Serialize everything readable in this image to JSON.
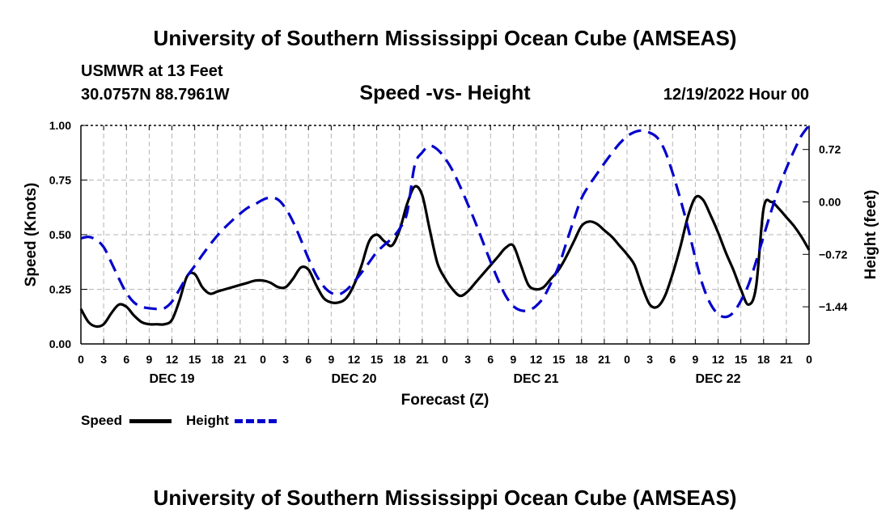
{
  "header": {
    "title": "University of Southern Mississippi Ocean Cube (AMSEAS)",
    "station": "USMWR at 13 Feet",
    "coords": "30.0757N  88.7961W",
    "subtitle": "Speed -vs- Height",
    "date": "12/19/2022 Hour 00"
  },
  "footer": {
    "title": "University of Southern Mississippi Ocean Cube (AMSEAS)"
  },
  "legend": {
    "speed": {
      "label": "Speed",
      "color": "#000000"
    },
    "height": {
      "label": "Height",
      "color": "#0000cc"
    }
  },
  "chart_data": {
    "type": "line",
    "title": "Speed -vs- Height",
    "xlabel": "Forecast (Z)",
    "ylabel": "Speed (Knots)",
    "y2label": "Height (feet)",
    "xlim": [
      0,
      96
    ],
    "ylim": [
      0,
      1.0
    ],
    "y2lim": [
      -1.95,
      1.05
    ],
    "grid": true,
    "xticks": [
      0,
      3,
      6,
      9,
      12,
      15,
      18,
      21,
      24,
      27,
      30,
      33,
      36,
      39,
      42,
      45,
      48,
      51,
      54,
      57,
      60,
      63,
      66,
      69,
      72,
      75,
      78,
      81,
      84,
      87,
      90,
      93,
      96
    ],
    "xtick_labels": [
      "0",
      "3",
      "6",
      "9",
      "12",
      "15",
      "18",
      "21",
      "0",
      "3",
      "6",
      "9",
      "12",
      "15",
      "18",
      "21",
      "0",
      "3",
      "6",
      "9",
      "12",
      "15",
      "18",
      "21",
      "0",
      "3",
      "6",
      "9",
      "12",
      "15",
      "18",
      "21",
      "0"
    ],
    "day_labels": [
      {
        "hour": 12,
        "label": "DEC 19"
      },
      {
        "hour": 36,
        "label": "DEC 20"
      },
      {
        "hour": 60,
        "label": "DEC 21"
      },
      {
        "hour": 84,
        "label": "DEC 22"
      }
    ],
    "yticks": [
      0.0,
      0.25,
      0.5,
      0.75,
      1.0
    ],
    "ytick_labels": [
      "0.00",
      "0.25",
      "0.50",
      "0.75",
      "1.00"
    ],
    "y2ticks": [
      0.72,
      0.0,
      -0.72,
      -1.44
    ],
    "y2tick_labels": [
      "0.72",
      "0.00",
      "−0.72",
      "−1.44"
    ],
    "series": [
      {
        "name": "Speed",
        "axis": "left",
        "style": "solid",
        "x": [
          0,
          1,
          2,
          3,
          4,
          5,
          6,
          7,
          8,
          9,
          10,
          11,
          12,
          13,
          14,
          15,
          16,
          17,
          18,
          19,
          20,
          21,
          22,
          23,
          24,
          25,
          26,
          27,
          28,
          29,
          30,
          31,
          32,
          33,
          34,
          35,
          36,
          37,
          38,
          39,
          40,
          41,
          42,
          43,
          44,
          45,
          46,
          47,
          48,
          49,
          50,
          51,
          52,
          53,
          54,
          55,
          56,
          57,
          58,
          59,
          60,
          61,
          62,
          63,
          64,
          65,
          66,
          67,
          68,
          69,
          70,
          71,
          72,
          73,
          74,
          75,
          76,
          77,
          78,
          79,
          80,
          81,
          82,
          83,
          84,
          85,
          86,
          87,
          88,
          89,
          90,
          91,
          92,
          93,
          94,
          95,
          96
        ],
        "values": [
          0.16,
          0.1,
          0.08,
          0.09,
          0.14,
          0.18,
          0.17,
          0.13,
          0.1,
          0.09,
          0.09,
          0.09,
          0.11,
          0.2,
          0.31,
          0.32,
          0.26,
          0.23,
          0.24,
          0.25,
          0.26,
          0.27,
          0.28,
          0.29,
          0.29,
          0.28,
          0.26,
          0.26,
          0.3,
          0.35,
          0.34,
          0.27,
          0.21,
          0.19,
          0.19,
          0.21,
          0.27,
          0.36,
          0.47,
          0.5,
          0.47,
          0.45,
          0.52,
          0.64,
          0.72,
          0.68,
          0.52,
          0.37,
          0.3,
          0.25,
          0.22,
          0.24,
          0.28,
          0.32,
          0.36,
          0.4,
          0.44,
          0.45,
          0.36,
          0.27,
          0.25,
          0.26,
          0.3,
          0.34,
          0.4,
          0.47,
          0.54,
          0.56,
          0.55,
          0.52,
          0.49,
          0.45,
          0.41,
          0.36,
          0.26,
          0.18,
          0.17,
          0.22,
          0.32,
          0.44,
          0.58,
          0.67,
          0.66,
          0.59,
          0.51,
          0.42,
          0.34,
          0.25,
          0.18,
          0.26,
          0.62,
          0.65,
          0.62,
          0.58,
          0.54,
          0.49,
          0.43
        ]
      },
      {
        "name": "Height",
        "axis": "right",
        "style": "dashed",
        "x": [
          0,
          1,
          2,
          3,
          4,
          5,
          6,
          7,
          8,
          9,
          10,
          11,
          12,
          13,
          14,
          15,
          16,
          17,
          18,
          19,
          20,
          21,
          22,
          23,
          24,
          25,
          26,
          27,
          28,
          29,
          30,
          31,
          32,
          33,
          34,
          35,
          36,
          37,
          38,
          39,
          40,
          41,
          42,
          43,
          44,
          45,
          46,
          47,
          48,
          49,
          50,
          51,
          52,
          53,
          54,
          55,
          56,
          57,
          58,
          59,
          60,
          61,
          62,
          63,
          64,
          65,
          66,
          67,
          68,
          69,
          70,
          71,
          72,
          73,
          74,
          75,
          76,
          77,
          78,
          79,
          80,
          81,
          82,
          83,
          84,
          85,
          86,
          87,
          88,
          89,
          90,
          91,
          92,
          93,
          94,
          95,
          96
        ],
        "values": [
          -0.5,
          -0.48,
          -0.52,
          -0.62,
          -0.83,
          -1.05,
          -1.25,
          -1.38,
          -1.44,
          -1.46,
          -1.47,
          -1.46,
          -1.37,
          -1.2,
          -1.02,
          -0.88,
          -0.73,
          -0.59,
          -0.46,
          -0.35,
          -0.25,
          -0.16,
          -0.08,
          -0.03,
          0.03,
          0.06,
          0.03,
          -0.09,
          -0.28,
          -0.52,
          -0.78,
          -1.0,
          -1.16,
          -1.25,
          -1.27,
          -1.21,
          -1.1,
          -0.97,
          -0.83,
          -0.69,
          -0.59,
          -0.5,
          -0.37,
          -0.15,
          0.5,
          0.68,
          0.77,
          0.72,
          0.6,
          0.43,
          0.21,
          -0.03,
          -0.28,
          -0.55,
          -0.82,
          -1.07,
          -1.29,
          -1.43,
          -1.49,
          -1.49,
          -1.43,
          -1.31,
          -1.11,
          -0.88,
          -0.56,
          -0.24,
          0.05,
          0.23,
          0.38,
          0.53,
          0.67,
          0.8,
          0.9,
          0.96,
          0.98,
          0.95,
          0.88,
          0.7,
          0.4,
          0.05,
          -0.34,
          -0.77,
          -1.15,
          -1.4,
          -1.54,
          -1.58,
          -1.52,
          -1.36,
          -1.14,
          -0.82,
          -0.47,
          -0.13,
          0.19,
          0.46,
          0.7,
          0.91,
          1.05
        ]
      }
    ]
  }
}
